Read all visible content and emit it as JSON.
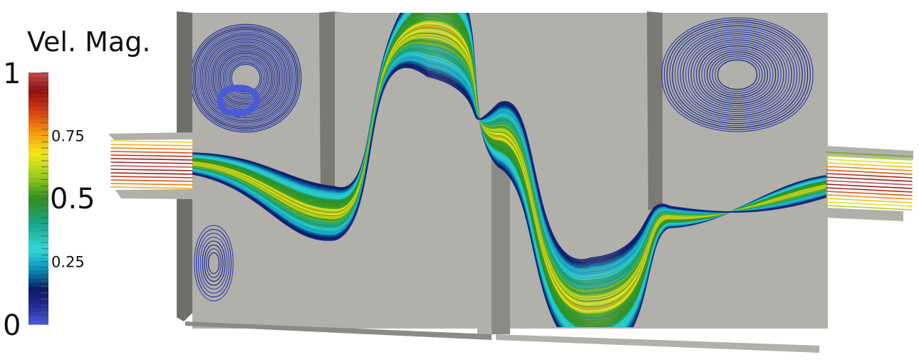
{
  "colorbar": {
    "title": "Vel. Mag.",
    "labels": [
      {
        "text": "1",
        "value": 1.0,
        "size": "large"
      },
      {
        "text": "0.75",
        "value": 0.75,
        "size": "small"
      },
      {
        "text": "0.5",
        "value": 0.5,
        "size": "large"
      },
      {
        "text": "0.25",
        "value": 0.25,
        "size": "small"
      },
      {
        "text": "0",
        "value": 0.0,
        "size": "large"
      }
    ],
    "colormap": [
      {
        "value": 0.0,
        "color": "#4b5bd8"
      },
      {
        "value": 0.08,
        "color": "#1d2a8c"
      },
      {
        "value": 0.14,
        "color": "#0c1a64"
      },
      {
        "value": 0.22,
        "color": "#0a8fb8"
      },
      {
        "value": 0.3,
        "color": "#31d9d9"
      },
      {
        "value": 0.4,
        "color": "#1aa58a"
      },
      {
        "value": 0.5,
        "color": "#2f8f1f"
      },
      {
        "value": 0.6,
        "color": "#a7d11c"
      },
      {
        "value": 0.68,
        "color": "#f3e81a"
      },
      {
        "value": 0.76,
        "color": "#f59a10"
      },
      {
        "value": 0.85,
        "color": "#d93a10"
      },
      {
        "value": 0.93,
        "color": "#8b0f10"
      },
      {
        "value": 1.0,
        "color": "#c84a4a"
      }
    ]
  },
  "geometry_colors": {
    "wall_face": "#b1b0aa",
    "wall_shadow": "#6f6f6a",
    "wall_edge": "#8b8b86"
  }
}
